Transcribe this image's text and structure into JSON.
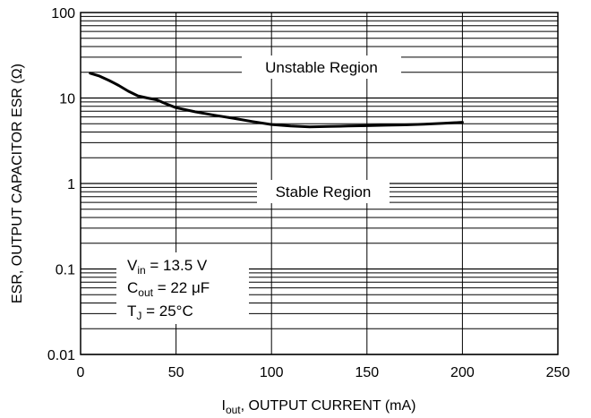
{
  "chart_data": {
    "type": "line",
    "title": "",
    "xlabel": {
      "main": "I",
      "sub": "out",
      "rest": ", OUTPUT CURRENT (mA)"
    },
    "ylabel": "ESR, OUTPUT CAPACITOR ESR (Ω)",
    "xlim": [
      0,
      250
    ],
    "ylim": [
      0.01,
      100
    ],
    "yscale": "log",
    "grid": true,
    "x_ticks": [
      "0",
      "50",
      "100",
      "150",
      "200",
      "250"
    ],
    "y_ticks": [
      "0.01",
      "0.1",
      "1",
      "10",
      "100"
    ],
    "series": [
      {
        "x": [
          5,
          10,
          15,
          20,
          25,
          30,
          35,
          40,
          45,
          50,
          60,
          70,
          80,
          90,
          100,
          110,
          120,
          130,
          140,
          150,
          160,
          170,
          180,
          190,
          200
        ],
        "y": [
          19.5,
          18,
          16,
          14,
          12,
          10.6,
          10,
          9.5,
          8.5,
          7.7,
          6.9,
          6.3,
          5.8,
          5.3,
          4.9,
          4.7,
          4.6,
          4.65,
          4.7,
          4.75,
          4.8,
          4.85,
          4.95,
          5.05,
          5.2
        ]
      }
    ],
    "annotations": {
      "unstable": "Unstable Region",
      "stable": "Stable Region"
    },
    "conditions": [
      {
        "main": "V",
        "sub": "in",
        "rest": " = 13.5 V"
      },
      {
        "main": "C",
        "sub": "out",
        "rest": " = 22 μF"
      },
      {
        "main": "T",
        "sub": "J",
        "rest": " = 25°C"
      }
    ]
  }
}
